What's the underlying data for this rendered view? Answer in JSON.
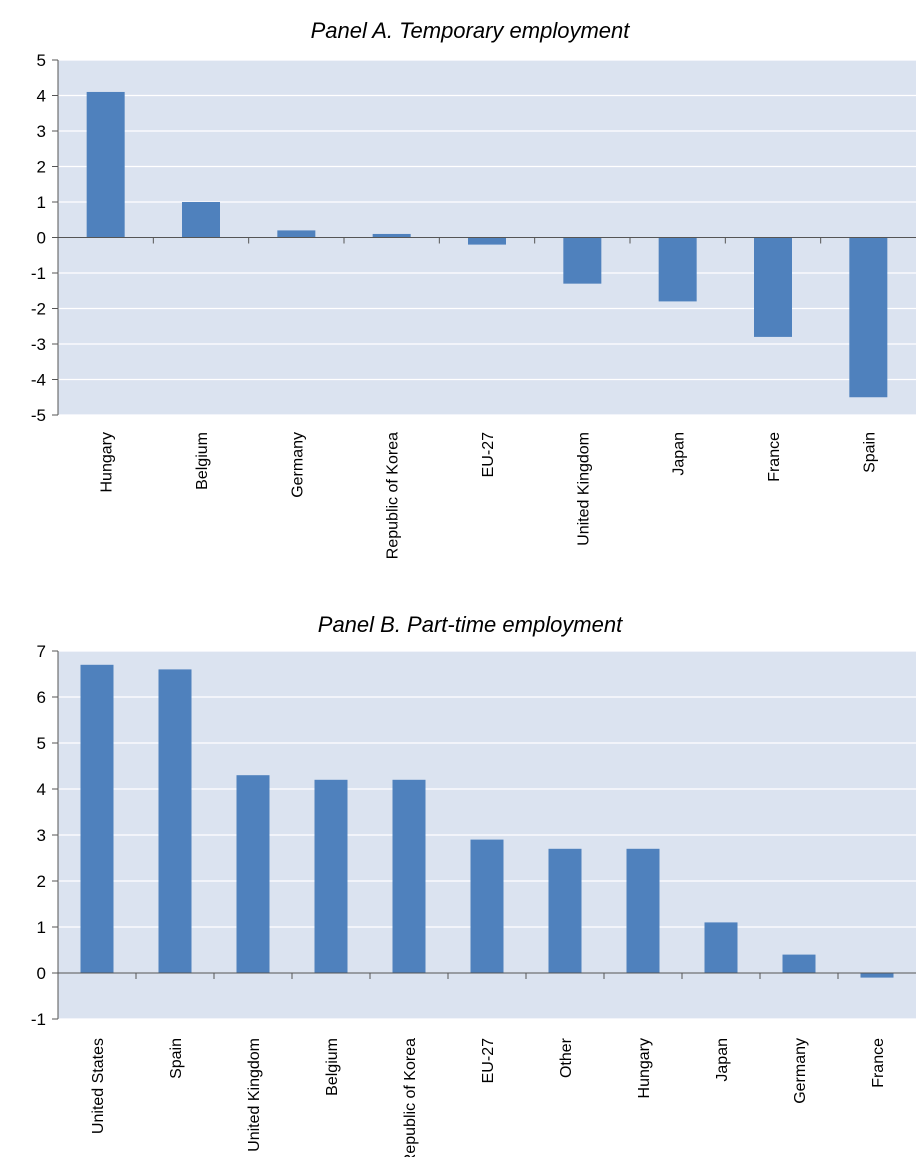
{
  "colors": {
    "bar": "#4f81bd",
    "plot_bg": "#dbe3f0",
    "grid": "#ffffff",
    "axis": "#555555"
  },
  "chart_data": [
    {
      "type": "bar",
      "title": "Panel A. Temporary employment",
      "categories": [
        "Hungary",
        "Belgium",
        "Germany",
        "Republic of Korea",
        "EU-27",
        "United Kingdom",
        "Japan",
        "France",
        "Spain"
      ],
      "values": [
        4.1,
        1.0,
        0.2,
        0.1,
        -0.2,
        -1.3,
        -1.8,
        -2.8,
        -4.5
      ],
      "yticks": [
        "5",
        "4",
        "3",
        "2",
        "1",
        "0",
        "-1",
        "-2",
        "-3",
        "-4",
        "-5"
      ],
      "ylim": [
        -5,
        5
      ],
      "grid": true
    },
    {
      "type": "bar",
      "title": "Panel B. Part-time employment",
      "categories": [
        "United States",
        "Spain",
        "United Kingdom",
        "Belgium",
        "Republic of Korea",
        "EU-27",
        "Other",
        "Hungary",
        "Japan",
        "Germany",
        "France"
      ],
      "values": [
        6.7,
        6.6,
        4.3,
        4.2,
        4.2,
        2.9,
        2.7,
        2.7,
        1.1,
        0.4,
        -0.1
      ],
      "yticks": [
        "7",
        "6",
        "5",
        "4",
        "3",
        "2",
        "1",
        "0",
        "-1"
      ],
      "ylim": [
        -1,
        7
      ],
      "grid": true
    }
  ]
}
